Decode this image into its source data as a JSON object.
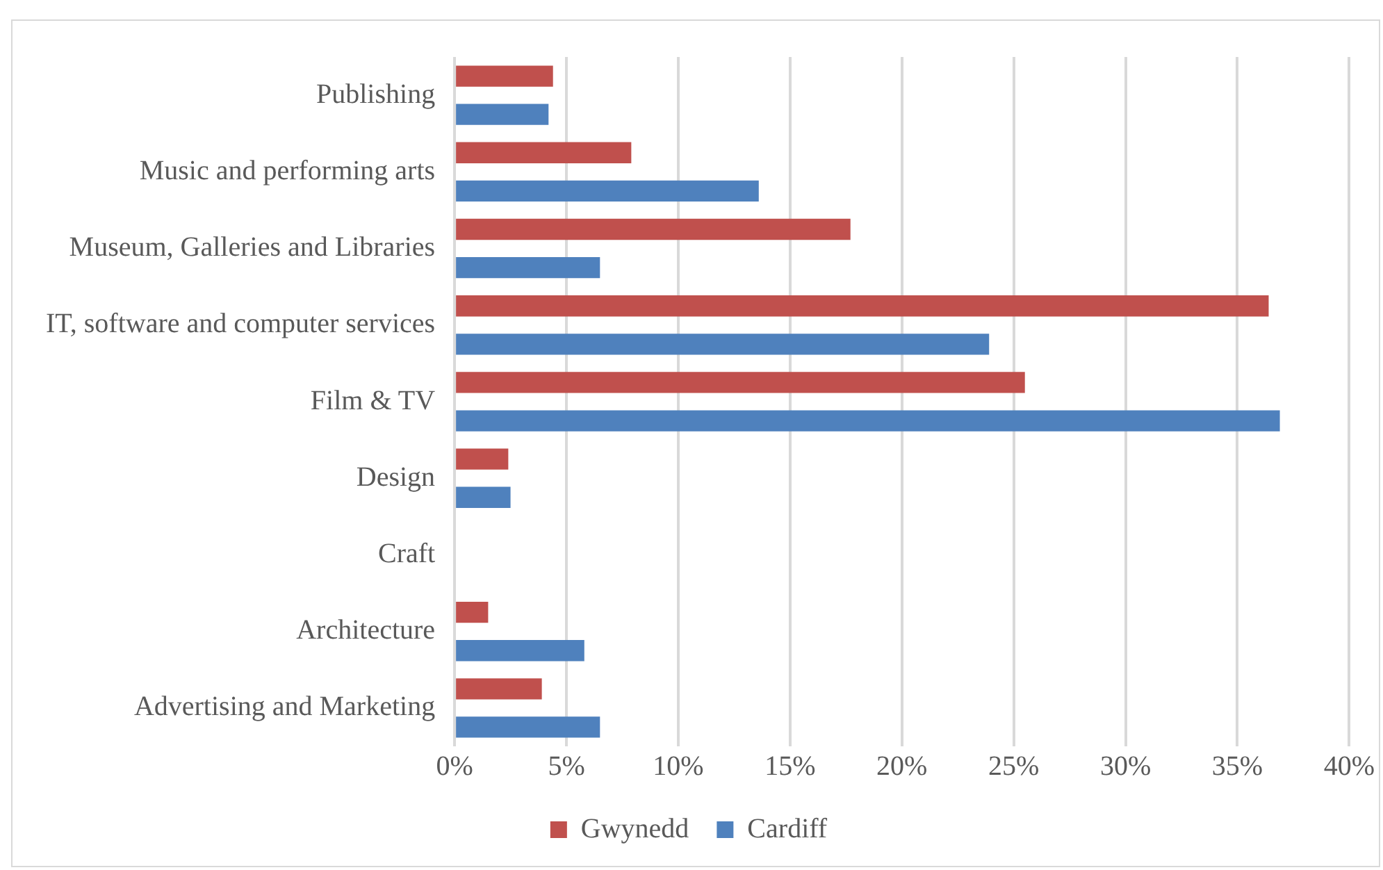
{
  "chart_data": {
    "type": "bar",
    "orientation": "horizontal",
    "categories": [
      "Publishing",
      "Music and performing arts",
      "Museum, Galleries and Libraries",
      "IT, software and computer services",
      "Film & TV",
      "Design",
      "Craft",
      "Architecture",
      "Advertising and Marketing"
    ],
    "series": [
      {
        "name": "Gwynedd",
        "color": "#c0504d",
        "values": [
          4.4,
          7.9,
          17.7,
          36.4,
          25.5,
          2.4,
          null,
          1.5,
          3.9
        ]
      },
      {
        "name": "Cardiff",
        "color": "#4f81bd",
        "values": [
          4.2,
          13.6,
          6.5,
          23.9,
          36.9,
          2.5,
          null,
          5.8,
          6.5
        ]
      }
    ],
    "xlim": [
      0,
      40
    ],
    "xticks": [
      {
        "value": 0,
        "label": "0%"
      },
      {
        "value": 5,
        "label": "5%"
      },
      {
        "value": 10,
        "label": "10%"
      },
      {
        "value": 15,
        "label": "15%"
      },
      {
        "value": 20,
        "label": "20%"
      },
      {
        "value": 25,
        "label": "25%"
      },
      {
        "value": 30,
        "label": "30%"
      },
      {
        "value": 35,
        "label": "35%"
      },
      {
        "value": 40,
        "label": "40%"
      }
    ],
    "grid": "x",
    "legend": "bottom"
  }
}
